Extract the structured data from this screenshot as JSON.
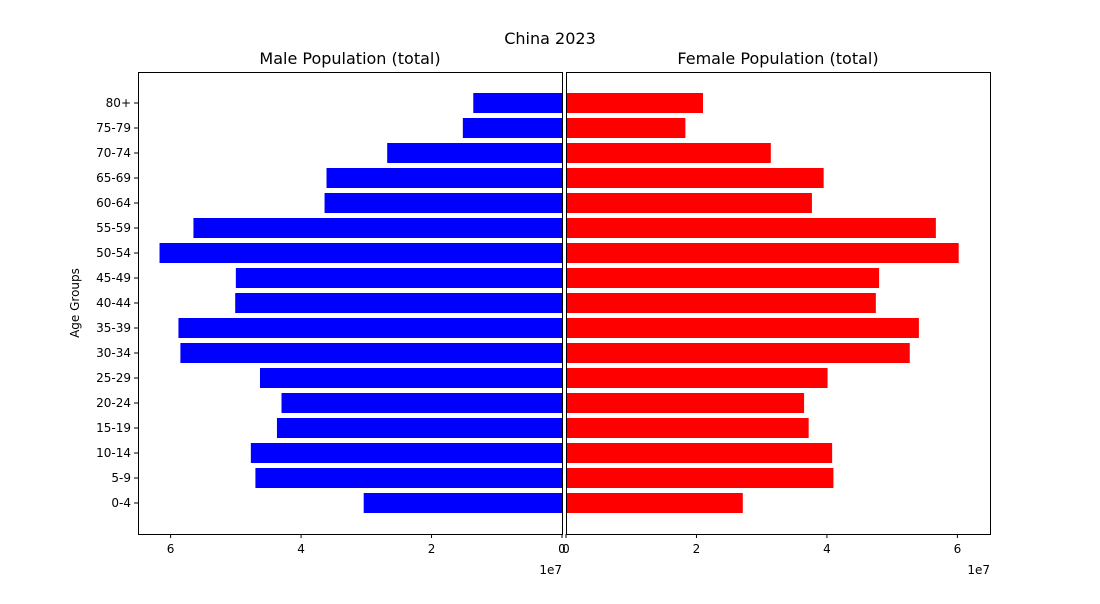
{
  "chart_data": {
    "type": "bar",
    "title": "China 2023",
    "ylabel": "Age Groups",
    "categories": [
      "0-4",
      "5-9",
      "10-14",
      "15-19",
      "20-24",
      "25-29",
      "30-34",
      "35-39",
      "40-44",
      "45-49",
      "50-54",
      "55-59",
      "60-64",
      "65-69",
      "70-74",
      "75-79",
      "80+"
    ],
    "series": [
      {
        "name": "Male Population (total)",
        "color": "#0000ff",
        "values": [
          30400000,
          47000000,
          47700000,
          43700000,
          43000000,
          46300000,
          58500000,
          58800000,
          50100000,
          50000000,
          61700000,
          56500000,
          36400000,
          36100000,
          26800000,
          15200000,
          13600000
        ]
      },
      {
        "name": "Female Population (total)",
        "color": "#ff0000",
        "values": [
          27100000,
          41000000,
          40800000,
          37200000,
          36500000,
          40100000,
          52700000,
          54100000,
          47500000,
          48000000,
          60200000,
          56700000,
          37700000,
          39500000,
          31400000,
          18300000,
          21000000
        ]
      }
    ],
    "xlim": [
      0,
      65000000
    ],
    "xticks": [
      0,
      20000000,
      40000000,
      60000000
    ],
    "xtick_labels": [
      "0",
      "2",
      "4",
      "6"
    ],
    "x_offset_label": "1e7",
    "grid": false
  }
}
